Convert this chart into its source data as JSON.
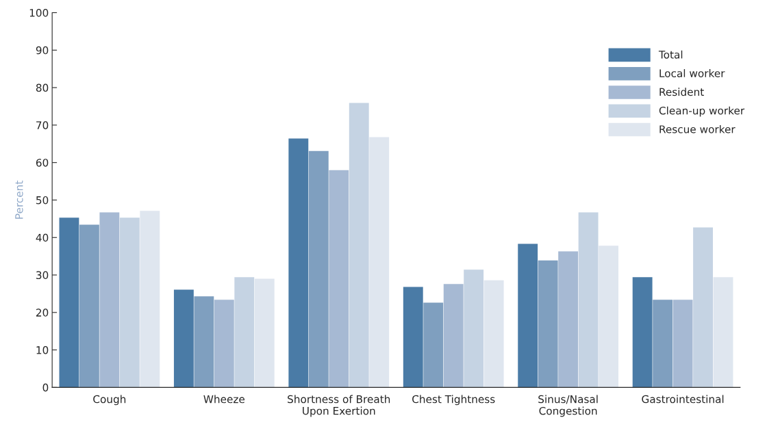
{
  "chart_data": {
    "type": "bar",
    "ylabel": "Percent",
    "categories": [
      "Cough",
      "Wheeze",
      "Shortness of Breath\nUpon Exertion",
      "Chest Tightness",
      "Sinus/Nasal\nCongestion",
      "Gastrointestinal"
    ],
    "series": [
      {
        "name": "Total",
        "color": "#4a7ba6",
        "values": [
          45.3,
          26.1,
          66.4,
          26.8,
          38.3,
          29.4
        ]
      },
      {
        "name": "Local worker",
        "color": "#7f9fbf",
        "values": [
          43.4,
          24.3,
          63.1,
          22.6,
          33.9,
          23.4
        ]
      },
      {
        "name": "Resident",
        "color": "#a6b9d3",
        "values": [
          46.7,
          23.4,
          58.0,
          27.6,
          36.3,
          23.4
        ]
      },
      {
        "name": "Clean-up worker",
        "color": "#c5d3e3",
        "values": [
          45.3,
          29.4,
          75.9,
          31.4,
          46.7,
          42.7
        ]
      },
      {
        "name": "Rescue worker",
        "color": "#dfe6ef",
        "values": [
          47.1,
          29.0,
          66.8,
          28.6,
          37.8,
          29.4
        ]
      }
    ],
    "ylim": [
      0,
      100
    ],
    "yticks": [
      0,
      10,
      20,
      30,
      40,
      50,
      60,
      70,
      80,
      90,
      100
    ],
    "grid": false,
    "legend": "top right"
  }
}
